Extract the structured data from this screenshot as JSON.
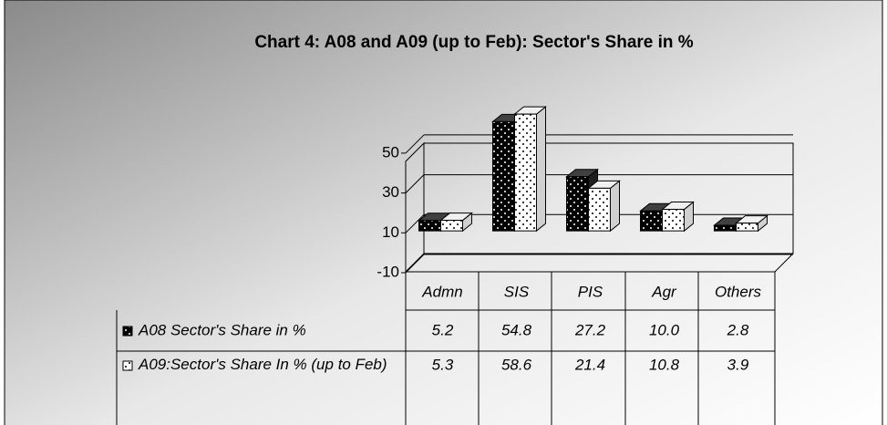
{
  "chart_data": {
    "type": "bar",
    "title": "Chart 4: A08 and A09 (up to Feb): Sector's Share in %",
    "categories": [
      "Admn",
      "SIS",
      "PIS",
      "Agr",
      "Others"
    ],
    "series": [
      {
        "name": "A08 Sector's Share in %",
        "color": "#000000",
        "values": [
          5.2,
          54.8,
          27.2,
          10.0,
          2.8
        ],
        "value_labels": [
          "5.2",
          "54.8",
          "27.2",
          "10.0",
          "2.8"
        ]
      },
      {
        "name": "A09:Sector's Share In % (up to Feb)",
        "color": "#ffffff",
        "values": [
          5.3,
          58.6,
          21.4,
          10.8,
          3.9
        ],
        "value_labels": [
          "5.3",
          "58.6",
          "21.4",
          "10.8",
          "3.9"
        ]
      }
    ],
    "ylim": [
      -10,
      55
    ],
    "yticks": [
      -10,
      10,
      30,
      50
    ],
    "grid": true
  }
}
